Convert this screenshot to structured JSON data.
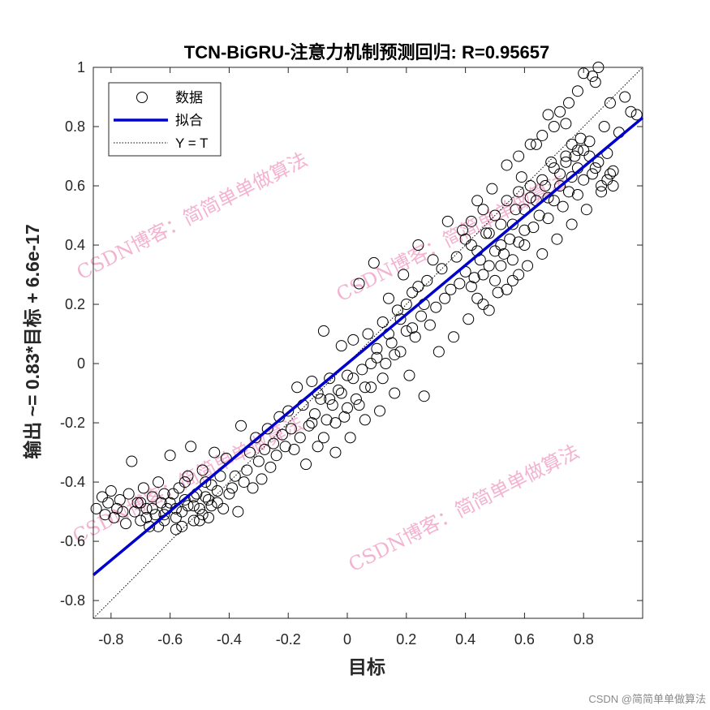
{
  "chart_data": {
    "type": "scatter",
    "title": "TCN-BiGRU-注意力机制预测回归: R=0.95657",
    "xlabel": "目标",
    "ylabel_parts": [
      "输出",
      " ~= 0.83*",
      "目标",
      " + 6.6e-17"
    ],
    "xlim": [
      -0.86,
      1.0
    ],
    "ylim": [
      -0.86,
      1.0
    ],
    "x_ticks": [
      "-0.8",
      "-0.6",
      "-0.4",
      "-0.2",
      "0",
      "0.2",
      "0.4",
      "0.6",
      "0.8"
    ],
    "y_ticks": [
      "-0.8",
      "-0.6",
      "-0.4",
      "-0.2",
      "0",
      "0.2",
      "0.4",
      "0.6",
      "0.8",
      "1"
    ],
    "fit_line": {
      "slope": 0.83,
      "intercept": 0.0,
      "color": "#0000cc"
    },
    "identity_line": {
      "slope": 1,
      "intercept": 0,
      "style": "dotted",
      "color": "#000000"
    },
    "legend": {
      "placement": "top-left",
      "entries": [
        {
          "label": "数据",
          "marker": "circle"
        },
        {
          "label": "拟合",
          "marker": "line"
        },
        {
          "label": "Y = T",
          "marker": "dotted-line"
        }
      ]
    },
    "series": [
      {
        "name": "数据",
        "marker": "open-circle",
        "points": [
          [
            -0.85,
            -0.49
          ],
          [
            -0.83,
            -0.45
          ],
          [
            -0.82,
            -0.51
          ],
          [
            -0.81,
            -0.47
          ],
          [
            -0.8,
            -0.43
          ],
          [
            -0.79,
            -0.52
          ],
          [
            -0.78,
            -0.49
          ],
          [
            -0.77,
            -0.46
          ],
          [
            -0.76,
            -0.5
          ],
          [
            -0.75,
            -0.54
          ],
          [
            -0.74,
            -0.44
          ],
          [
            -0.73,
            -0.33
          ],
          [
            -0.72,
            -0.5
          ],
          [
            -0.71,
            -0.47
          ],
          [
            -0.7,
            -0.53
          ],
          [
            -0.69,
            -0.42
          ],
          [
            -0.68,
            -0.49
          ],
          [
            -0.67,
            -0.55
          ],
          [
            -0.66,
            -0.45
          ],
          [
            -0.65,
            -0.51
          ],
          [
            -0.64,
            -0.4
          ],
          [
            -0.63,
            -0.47
          ],
          [
            -0.62,
            -0.53
          ],
          [
            -0.61,
            -0.49
          ],
          [
            -0.6,
            -0.31
          ],
          [
            -0.59,
            -0.44
          ],
          [
            -0.58,
            -0.56
          ],
          [
            -0.57,
            -0.42
          ],
          [
            -0.56,
            -0.5
          ],
          [
            -0.55,
            -0.46
          ],
          [
            -0.54,
            -0.38
          ],
          [
            -0.53,
            -0.28
          ],
          [
            -0.52,
            -0.53
          ],
          [
            -0.51,
            -0.44
          ],
          [
            -0.5,
            -0.49
          ],
          [
            -0.49,
            -0.36
          ],
          [
            -0.48,
            -0.45
          ],
          [
            -0.47,
            -0.52
          ],
          [
            -0.46,
            -0.41
          ],
          [
            -0.45,
            -0.3
          ],
          [
            -0.44,
            -0.47
          ],
          [
            -0.43,
            -0.38
          ],
          [
            -0.42,
            -0.49
          ],
          [
            -0.41,
            -0.32
          ],
          [
            -0.4,
            -0.44
          ],
          [
            -0.39,
            -0.42
          ],
          [
            -0.38,
            -0.38
          ],
          [
            -0.37,
            -0.5
          ],
          [
            -0.36,
            -0.21
          ],
          [
            -0.35,
            -0.4
          ],
          [
            -0.34,
            -0.36
          ],
          [
            -0.33,
            -0.3
          ],
          [
            -0.32,
            -0.42
          ],
          [
            -0.31,
            -0.25
          ],
          [
            -0.3,
            -0.33
          ],
          [
            -0.29,
            -0.39
          ],
          [
            -0.28,
            -0.29
          ],
          [
            -0.27,
            -0.22
          ],
          [
            -0.26,
            -0.35
          ],
          [
            -0.25,
            -0.27
          ],
          [
            -0.24,
            -0.31
          ],
          [
            -0.23,
            -0.18
          ],
          [
            -0.22,
            -0.24
          ],
          [
            -0.21,
            -0.28
          ],
          [
            -0.2,
            -0.16
          ],
          [
            -0.19,
            -0.22
          ],
          [
            -0.18,
            -0.29
          ],
          [
            -0.17,
            -0.08
          ],
          [
            -0.16,
            -0.25
          ],
          [
            -0.15,
            -0.14
          ],
          [
            -0.14,
            -0.34
          ],
          [
            -0.13,
            -0.21
          ],
          [
            -0.12,
            -0.06
          ],
          [
            -0.11,
            -0.17
          ],
          [
            -0.1,
            -0.28
          ],
          [
            -0.09,
            -0.12
          ],
          [
            -0.08,
            0.11
          ],
          [
            -0.07,
            -0.19
          ],
          [
            -0.06,
            -0.05
          ],
          [
            -0.05,
            -0.14
          ],
          [
            -0.04,
            -0.3
          ],
          [
            -0.03,
            -0.09
          ],
          [
            -0.02,
            0.06
          ],
          [
            -0.01,
            -0.18
          ],
          [
            0.0,
            -0.04
          ],
          [
            0.01,
            -0.25
          ],
          [
            0.02,
            0.08
          ],
          [
            0.03,
            -0.12
          ],
          [
            0.04,
            0.27
          ],
          [
            0.05,
            -0.02
          ],
          [
            0.06,
            -0.19
          ],
          [
            0.07,
            0.1
          ],
          [
            0.08,
            -0.08
          ],
          [
            0.09,
            0.34
          ],
          [
            0.1,
            0.02
          ],
          [
            0.11,
            -0.16
          ],
          [
            0.12,
            0.14
          ],
          [
            0.13,
            0.0
          ],
          [
            0.14,
            0.22
          ],
          [
            0.15,
            0.07
          ],
          [
            0.16,
            -0.1
          ],
          [
            0.17,
            0.18
          ],
          [
            0.18,
            0.04
          ],
          [
            0.19,
            0.3
          ],
          [
            0.2,
            0.11
          ],
          [
            0.21,
            -0.04
          ],
          [
            0.22,
            0.24
          ],
          [
            0.23,
            0.09
          ],
          [
            0.24,
            0.4
          ],
          [
            0.25,
            0.16
          ],
          [
            0.26,
            -0.11
          ],
          [
            0.27,
            0.28
          ],
          [
            0.28,
            0.13
          ],
          [
            0.29,
            0.35
          ],
          [
            0.3,
            0.19
          ],
          [
            0.31,
            0.04
          ],
          [
            0.32,
            0.32
          ],
          [
            0.33,
            0.22
          ],
          [
            0.34,
            0.48
          ],
          [
            0.35,
            0.25
          ],
          [
            0.36,
            0.09
          ],
          [
            0.37,
            0.36
          ],
          [
            0.38,
            0.27
          ],
          [
            0.39,
            0.45
          ],
          [
            0.4,
            0.31
          ],
          [
            0.41,
            0.15
          ],
          [
            0.42,
            0.4
          ],
          [
            0.43,
            0.29
          ],
          [
            0.44,
            0.55
          ],
          [
            0.45,
            0.35
          ],
          [
            0.46,
            0.2
          ],
          [
            0.47,
            0.44
          ],
          [
            0.48,
            0.33
          ],
          [
            0.49,
            0.59
          ],
          [
            0.5,
            0.38
          ],
          [
            0.51,
            0.24
          ],
          [
            0.52,
            0.47
          ],
          [
            0.53,
            0.37
          ],
          [
            0.54,
            0.67
          ],
          [
            0.55,
            0.42
          ],
          [
            0.56,
            0.28
          ],
          [
            0.57,
            0.52
          ],
          [
            0.58,
            0.41
          ],
          [
            0.59,
            0.63
          ],
          [
            0.6,
            0.45
          ],
          [
            0.61,
            0.33
          ],
          [
            0.62,
            0.56
          ],
          [
            0.63,
            0.46
          ],
          [
            0.64,
            0.74
          ],
          [
            0.65,
            0.5
          ],
          [
            0.66,
            0.37
          ],
          [
            0.67,
            0.6
          ],
          [
            0.68,
            0.49
          ],
          [
            0.69,
            0.68
          ],
          [
            0.7,
            0.55
          ],
          [
            0.71,
            0.42
          ],
          [
            0.72,
            0.64
          ],
          [
            0.73,
            0.53
          ],
          [
            0.74,
            0.81
          ],
          [
            0.75,
            0.58
          ],
          [
            0.76,
            0.47
          ],
          [
            0.77,
            0.7
          ],
          [
            0.78,
            0.57
          ],
          [
            0.79,
            0.76
          ],
          [
            0.8,
            0.62
          ],
          [
            0.81,
            0.52
          ],
          [
            0.82,
            0.75
          ],
          [
            0.83,
            0.64
          ],
          [
            0.84,
            0.95
          ],
          [
            0.85,
            0.68
          ],
          [
            0.86,
            0.6
          ],
          [
            0.87,
            0.8
          ],
          [
            0.88,
            0.71
          ],
          [
            0.89,
            0.88
          ],
          [
            0.9,
            0.65
          ],
          [
            0.92,
            0.78
          ],
          [
            0.94,
            0.9
          ],
          [
            0.96,
            0.85
          ],
          [
            0.98,
            0.84
          ],
          [
            0.85,
            1.0
          ],
          [
            0.83,
            0.97
          ],
          [
            0.8,
            0.98
          ],
          [
            0.78,
            0.92
          ],
          [
            0.75,
            0.88
          ],
          [
            0.72,
            0.85
          ],
          [
            0.7,
            0.8
          ],
          [
            0.68,
            0.84
          ],
          [
            0.66,
            0.77
          ],
          [
            0.62,
            0.74
          ],
          [
            0.58,
            0.7
          ],
          [
            -0.62,
            -0.51
          ],
          [
            -0.6,
            -0.47
          ],
          [
            -0.58,
            -0.52
          ],
          [
            -0.56,
            -0.55
          ],
          [
            -0.54,
            -0.48
          ],
          [
            -0.52,
            -0.45
          ],
          [
            -0.5,
            -0.53
          ],
          [
            -0.48,
            -0.4
          ],
          [
            -0.46,
            -0.48
          ],
          [
            -0.44,
            -0.43
          ],
          [
            -0.7,
            -0.47
          ],
          [
            -0.68,
            -0.52
          ],
          [
            -0.66,
            -0.49
          ],
          [
            -0.64,
            -0.55
          ],
          [
            -0.62,
            -0.44
          ],
          [
            -0.58,
            -0.49
          ],
          [
            -0.55,
            -0.4
          ],
          [
            -0.52,
            -0.48
          ],
          [
            -0.49,
            -0.51
          ],
          [
            -0.47,
            -0.46
          ],
          [
            -0.12,
            -0.2
          ],
          [
            -0.1,
            -0.1
          ],
          [
            -0.08,
            -0.25
          ],
          [
            -0.06,
            -0.12
          ],
          [
            -0.04,
            -0.2
          ],
          [
            -0.02,
            -0.1
          ],
          [
            0.0,
            -0.15
          ],
          [
            0.02,
            -0.05
          ],
          [
            0.04,
            -0.14
          ],
          [
            0.06,
            -0.08
          ],
          [
            0.08,
            0.0
          ],
          [
            0.1,
            0.05
          ],
          [
            0.12,
            -0.05
          ],
          [
            0.14,
            0.1
          ],
          [
            0.16,
            0.03
          ],
          [
            0.18,
            0.15
          ],
          [
            0.2,
            0.2
          ],
          [
            0.22,
            0.12
          ],
          [
            0.24,
            0.26
          ],
          [
            0.26,
            0.2
          ],
          [
            0.4,
            0.42
          ],
          [
            0.42,
            0.48
          ],
          [
            0.44,
            0.38
          ],
          [
            0.46,
            0.52
          ],
          [
            0.48,
            0.44
          ],
          [
            0.5,
            0.5
          ],
          [
            0.52,
            0.4
          ],
          [
            0.54,
            0.55
          ],
          [
            0.56,
            0.47
          ],
          [
            0.58,
            0.58
          ],
          [
            0.6,
            0.52
          ],
          [
            0.62,
            0.6
          ],
          [
            0.64,
            0.55
          ],
          [
            0.66,
            0.62
          ],
          [
            0.68,
            0.56
          ],
          [
            0.7,
            0.66
          ],
          [
            0.72,
            0.6
          ],
          [
            0.74,
            0.68
          ],
          [
            0.76,
            0.63
          ],
          [
            0.78,
            0.72
          ],
          [
            0.42,
            0.26
          ],
          [
            0.44,
            0.22
          ],
          [
            0.46,
            0.3
          ],
          [
            0.48,
            0.18
          ],
          [
            0.5,
            0.28
          ],
          [
            0.52,
            0.33
          ],
          [
            0.54,
            0.25
          ],
          [
            0.56,
            0.35
          ],
          [
            0.58,
            0.3
          ],
          [
            0.6,
            0.4
          ],
          [
            0.88,
            0.62
          ],
          [
            0.9,
            0.6
          ],
          [
            0.89,
            0.64
          ],
          [
            0.86,
            0.58
          ],
          [
            0.84,
            0.66
          ],
          [
            0.82,
            0.7
          ],
          [
            0.8,
            0.72
          ],
          [
            0.78,
            0.66
          ],
          [
            0.76,
            0.74
          ],
          [
            0.74,
            0.7
          ]
        ]
      }
    ]
  },
  "watermarks": [
    "CSDN博客：简简单单做算法",
    "CSDN博客：简简单单做算法",
    "CSDN博客：简简单单做算法",
    "CSDN博客：简简单单做算法"
  ],
  "credit": "CSDN @简简单单做算法"
}
